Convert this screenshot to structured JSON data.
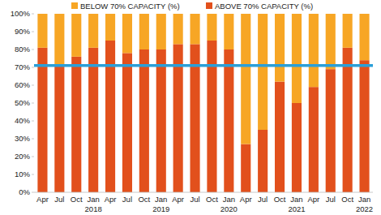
{
  "chart_data": {
    "type": "bar",
    "stacked": true,
    "categories": [
      "Apr",
      "Jul",
      "Oct",
      "Jan",
      "Apr",
      "Jul",
      "Oct",
      "Jan",
      "Apr",
      "Jul",
      "Oct",
      "Jan",
      "Apr",
      "Jul",
      "Oct",
      "Jan",
      "Apr",
      "Jul",
      "Oct",
      "Jan"
    ],
    "years": [
      null,
      null,
      null,
      "2018",
      null,
      null,
      null,
      "2019",
      null,
      null,
      null,
      "2020",
      null,
      null,
      null,
      "2021",
      null,
      null,
      null,
      "2022"
    ],
    "series": [
      {
        "name": "BELOW 70% CAPACITY (%)",
        "color": "#f7a625",
        "values": [
          19,
          29,
          24,
          19,
          15,
          22,
          20,
          20,
          17,
          17,
          15,
          20,
          73,
          65,
          38,
          50,
          41,
          31,
          19,
          26
        ]
      },
      {
        "name": "ABOVE 70% CAPACITY (%)",
        "color": "#e2501c",
        "values": [
          81,
          71,
          76,
          81,
          85,
          78,
          80,
          80,
          83,
          83,
          85,
          80,
          27,
          35,
          62,
          50,
          59,
          69,
          81,
          74
        ]
      }
    ],
    "threshold": {
      "value": 71,
      "color": "#2a9fd8"
    },
    "ylim": [
      0,
      100
    ],
    "yticks": [
      {
        "value": 0,
        "label": "0%"
      },
      {
        "value": 10,
        "label": "10%"
      },
      {
        "value": 20,
        "label": "20%"
      },
      {
        "value": 30,
        "label": "30%"
      },
      {
        "value": 40,
        "label": "40%"
      },
      {
        "value": 50,
        "label": "50%"
      },
      {
        "value": 60,
        "label": "60%"
      },
      {
        "value": 70,
        "label": "70%"
      },
      {
        "value": 80,
        "label": "80%"
      },
      {
        "value": 90,
        "label": "90%"
      },
      {
        "value": 100,
        "label": "100%"
      }
    ],
    "grid": false,
    "legend": "top"
  }
}
